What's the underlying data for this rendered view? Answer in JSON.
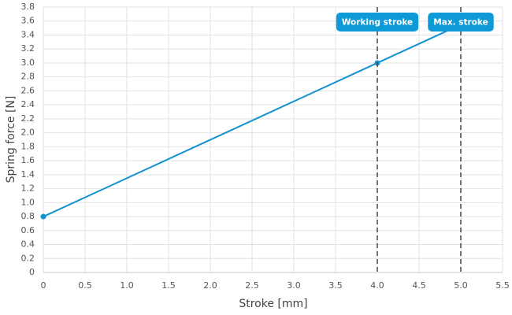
{
  "chart_data": {
    "type": "line",
    "x_label": "Stroke [mm]",
    "y_label": "Spring force [N]",
    "x": [
      0,
      4,
      5
    ],
    "series": [
      {
        "name": "Spring force",
        "color": "#1391d0",
        "values": [
          0.8,
          3.0,
          3.55
        ]
      }
    ],
    "xlim": [
      0,
      5.5
    ],
    "xticks": [
      0,
      0.5,
      {
        "value": 1,
        "label": "1.0"
      },
      1.5,
      {
        "value": 2,
        "label": "2.0"
      },
      2.5,
      {
        "value": 3,
        "label": "3.0"
      },
      3.5,
      {
        "value": 4,
        "label": "4.0"
      },
      4.5,
      {
        "value": 5,
        "label": "5.0"
      },
      5.5
    ],
    "ylim": [
      0,
      3.8
    ],
    "yticks": [
      0,
      0.2,
      0.4,
      0.6,
      0.8,
      {
        "value": 1,
        "label": "1.0"
      },
      1.2,
      1.4,
      1.6,
      1.8,
      {
        "value": 2,
        "label": "2.0"
      },
      2.2,
      2.4,
      2.6,
      2.8,
      {
        "value": 3,
        "label": "3.0"
      },
      3.2,
      3.4,
      3.6,
      3.8
    ],
    "grid": true,
    "annotations": [
      {
        "x": 4,
        "label": "Working stroke"
      },
      {
        "x": 5,
        "label": "Max. stroke"
      }
    ],
    "annotation_color": "#0e9ad7"
  }
}
